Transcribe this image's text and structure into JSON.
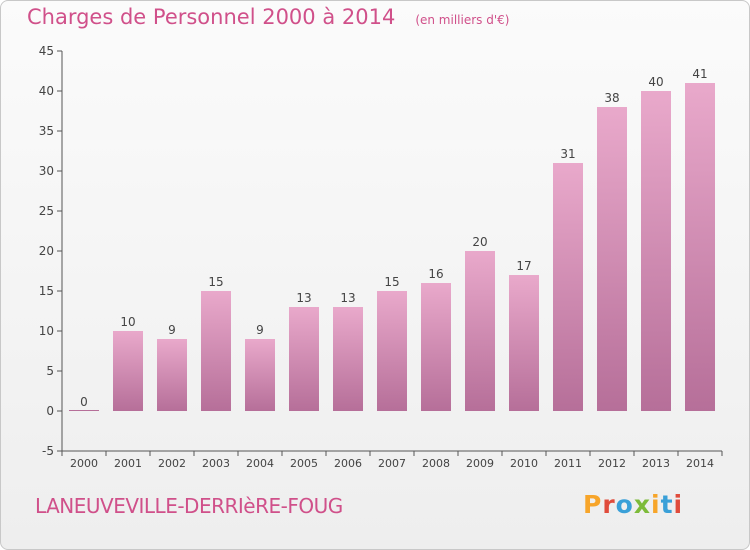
{
  "colors": {
    "accent": "#d0508a",
    "bar_light": "#e9a9cb",
    "bar_dark": "#b66f99",
    "axis": "#555555"
  },
  "header": {
    "title": "Charges de Personnel 2000 à 2014",
    "subtitle": "(en milliers d'€)"
  },
  "footer": {
    "town": "LANEUVEVILLE-DERRIèRE-FOUG",
    "logo": "Proxiti"
  },
  "chart_data": {
    "type": "bar",
    "title": "Charges de Personnel 2000 à 2014",
    "subtitle": "(en milliers d'€)",
    "categories": [
      "2000",
      "2001",
      "2002",
      "2003",
      "2004",
      "2005",
      "2006",
      "2007",
      "2008",
      "2009",
      "2010",
      "2011",
      "2012",
      "2013",
      "2014"
    ],
    "values": [
      0,
      10,
      9,
      15,
      9,
      13,
      13,
      15,
      16,
      20,
      17,
      31,
      38,
      40,
      41
    ],
    "ylim": [
      -5,
      45
    ],
    "yticks": [
      -5,
      0,
      5,
      10,
      15,
      20,
      25,
      30,
      35,
      40,
      45
    ],
    "grid": false,
    "data_labels": true
  }
}
